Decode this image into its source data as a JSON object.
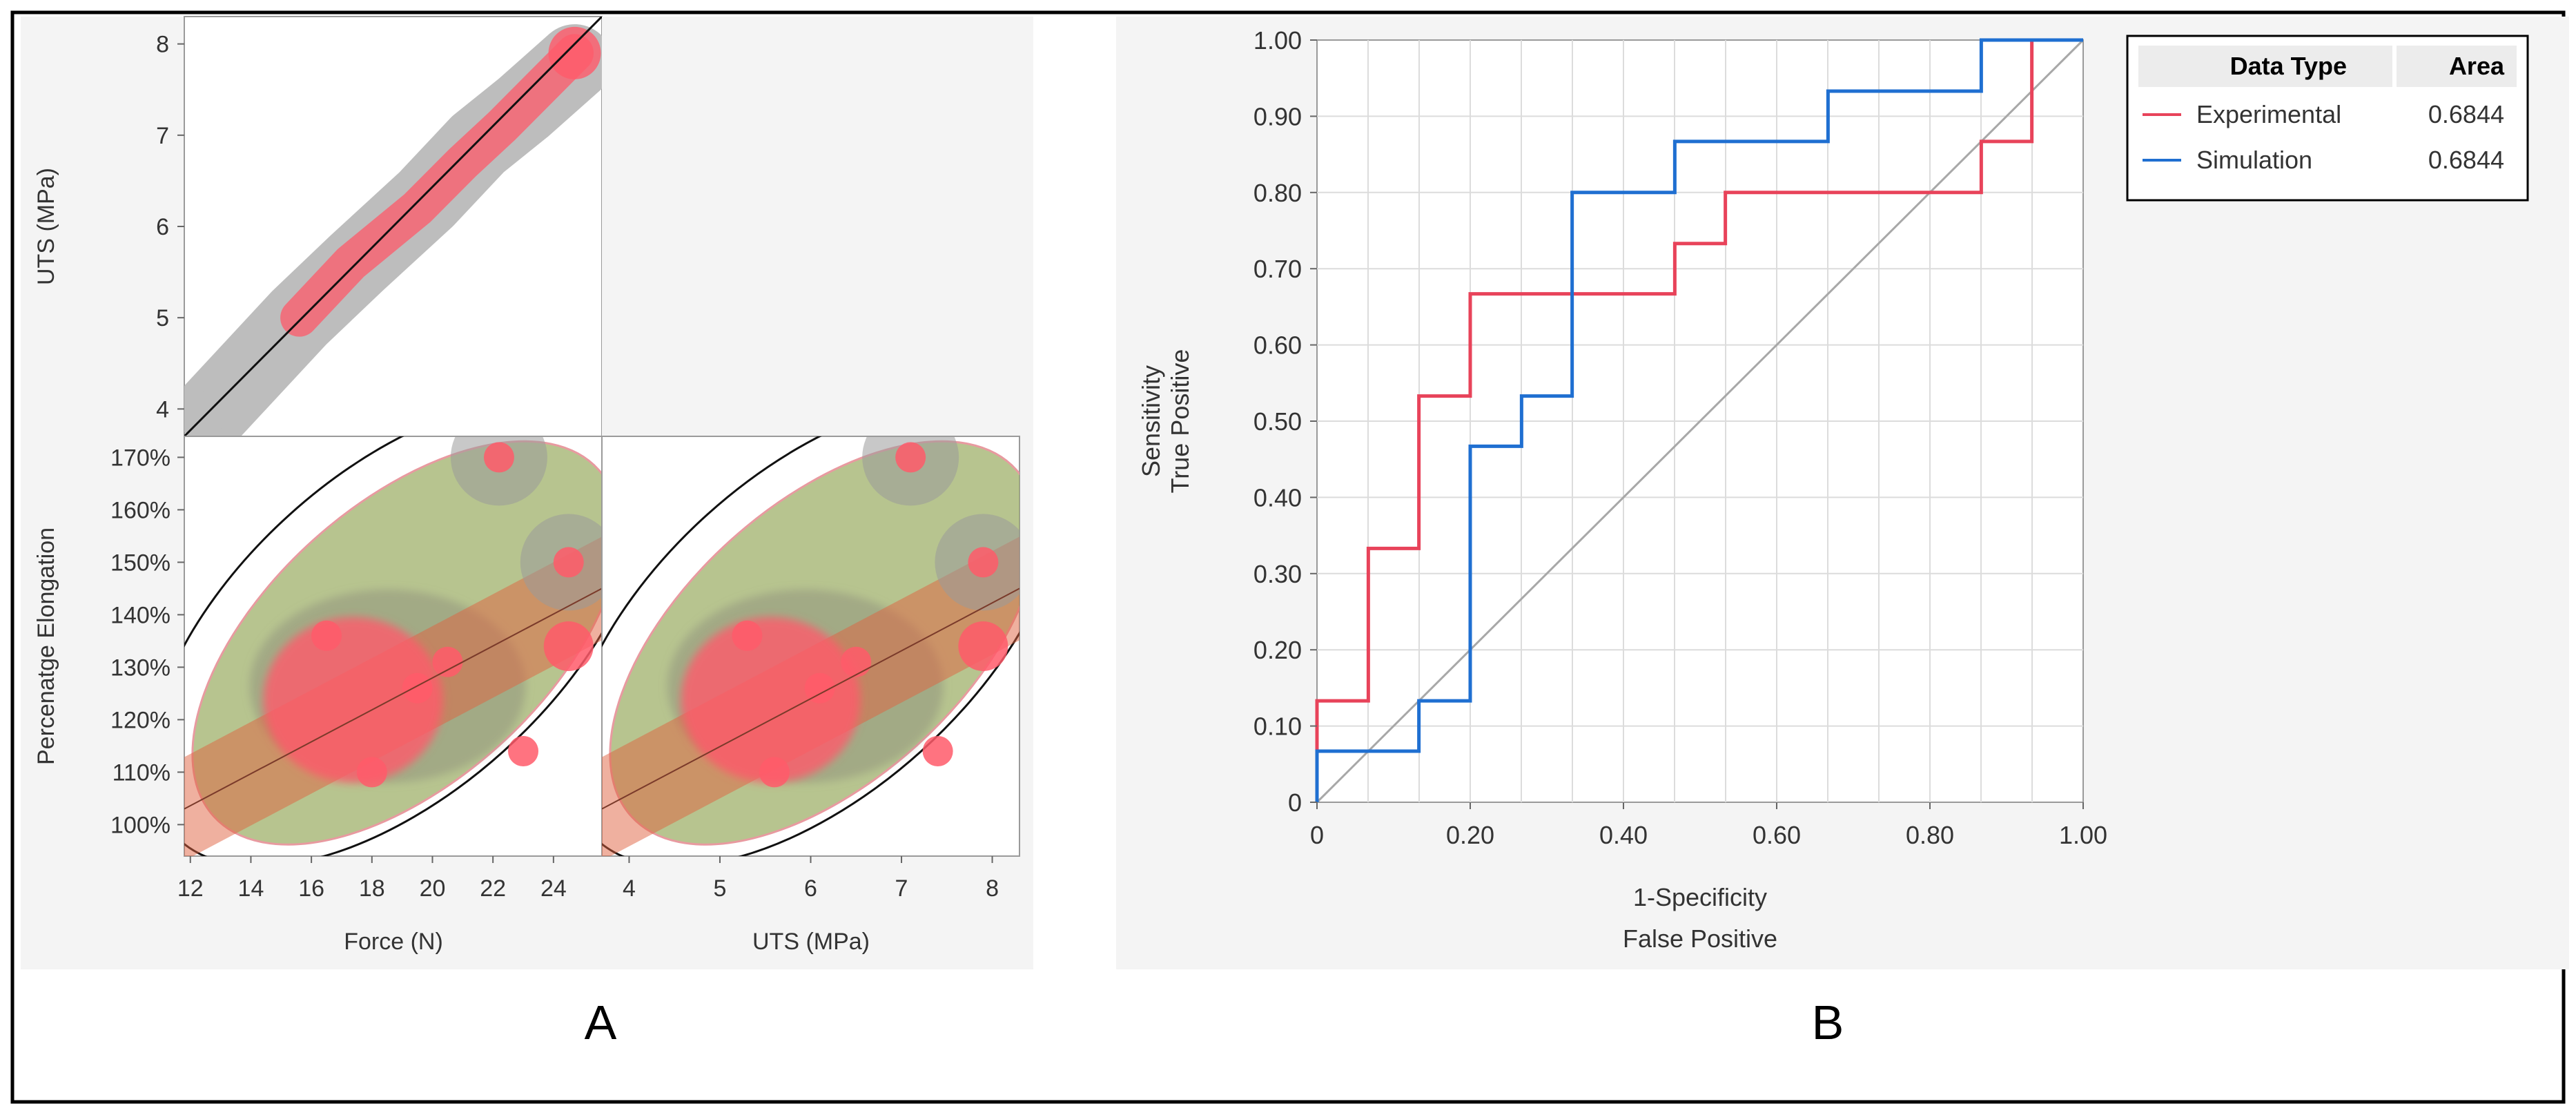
{
  "figure": {
    "panel_a_label": "A",
    "panel_b_label": "B"
  },
  "colors": {
    "experimental": "#e8435a",
    "simulation": "#1f6fd1",
    "density_gray": "#bdbdbd",
    "density_red": "#ff5a6a",
    "ellipse_fill": "#9fb06a",
    "band": "#e0623f",
    "grid": "#dcdcdc",
    "panel_bg": "#f4f4f4"
  },
  "chart_data": [
    {
      "type": "scatter",
      "id": "matrix-uts-vs-force",
      "title": "",
      "xlabel": "",
      "ylabel": "UTS (MPa)",
      "xlim": [
        11.8,
        25.6
      ],
      "ylim": [
        3.7,
        8.3
      ],
      "yticks": [
        4,
        5,
        6,
        7,
        8
      ],
      "fit_line": [
        [
          11.8,
          3.7
        ],
        [
          25.6,
          8.3
        ]
      ],
      "density_gray": [
        [
          12.8,
          4.0
        ],
        [
          15.6,
          5.0
        ],
        [
          17.5,
          5.6
        ],
        [
          19.8,
          6.3
        ],
        [
          21.5,
          6.9
        ],
        [
          23.0,
          7.3
        ],
        [
          24.7,
          7.8
        ]
      ],
      "density_red": [
        [
          15.6,
          5.0
        ],
        [
          17.3,
          5.6
        ],
        [
          19.5,
          6.2
        ],
        [
          21.0,
          6.7
        ],
        [
          22.3,
          7.1
        ],
        [
          24.7,
          7.9
        ]
      ]
    },
    {
      "type": "scatter",
      "id": "matrix-elongation-vs-force",
      "xlabel": "Force (N)",
      "ylabel": "Percenatge Elongation",
      "xlim": [
        11.8,
        25.6
      ],
      "ylim": [
        94,
        174
      ],
      "xticks": [
        12,
        14,
        16,
        18,
        20,
        22,
        24
      ],
      "yticks": [
        "100%",
        "110%",
        "120%",
        "130%",
        "140%",
        "150%",
        "160%",
        "170%"
      ],
      "ytick_values": [
        100,
        110,
        120,
        130,
        140,
        150,
        160,
        170
      ],
      "fit_line": [
        [
          11.8,
          103
        ],
        [
          25.6,
          145
        ]
      ],
      "points": [
        [
          22.2,
          170
        ],
        [
          24.5,
          150
        ],
        [
          16.5,
          136
        ],
        [
          24.5,
          134
        ],
        [
          23.0,
          114
        ],
        [
          19.5,
          126
        ],
        [
          18.0,
          110
        ],
        [
          20.5,
          131
        ]
      ]
    },
    {
      "type": "scatter",
      "id": "matrix-elongation-vs-uts",
      "xlabel": "UTS (MPa)",
      "xlim": [
        3.7,
        8.3
      ],
      "xticks": [
        4,
        5,
        6,
        7,
        8
      ],
      "ylim": [
        94,
        174
      ],
      "fit_line": [
        [
          3.7,
          103
        ],
        [
          8.3,
          145
        ]
      ],
      "points": [
        [
          7.1,
          170
        ],
        [
          7.9,
          150
        ],
        [
          5.3,
          136
        ],
        [
          7.9,
          134
        ],
        [
          7.4,
          114
        ],
        [
          6.1,
          126
        ],
        [
          5.6,
          110
        ],
        [
          6.5,
          131
        ]
      ]
    },
    {
      "type": "line",
      "id": "roc-curve",
      "title": "",
      "xlabel": [
        "1-Specificity",
        "False Positive"
      ],
      "ylabel": [
        "Sensitivity",
        "True Positive"
      ],
      "xlim": [
        0,
        1
      ],
      "ylim": [
        0,
        1
      ],
      "xticks": [
        "0",
        "0.20",
        "0.40",
        "0.60",
        "0.80",
        "1.00"
      ],
      "yticks": [
        "0",
        "0.10",
        "0.20",
        "0.30",
        "0.40",
        "0.50",
        "0.60",
        "0.70",
        "0.80",
        "0.90",
        "1.00"
      ],
      "grid": true,
      "legend": {
        "placement": "right",
        "header_type": "Data Type",
        "header_area": "Area"
      },
      "series": [
        {
          "name": "Experimental",
          "area": "0.6844",
          "color_key": "experimental",
          "points": [
            [
              0,
              0
            ],
            [
              0,
              0.133
            ],
            [
              0.067,
              0.133
            ],
            [
              0.067,
              0.333
            ],
            [
              0.133,
              0.333
            ],
            [
              0.133,
              0.533
            ],
            [
              0.2,
              0.533
            ],
            [
              0.2,
              0.667
            ],
            [
              0.467,
              0.667
            ],
            [
              0.467,
              0.733
            ],
            [
              0.533,
              0.733
            ],
            [
              0.533,
              0.8
            ],
            [
              0.867,
              0.8
            ],
            [
              0.867,
              0.867
            ],
            [
              0.933,
              0.867
            ],
            [
              0.933,
              1.0
            ]
          ]
        },
        {
          "name": "Simulation",
          "area": "0.6844",
          "color_key": "simulation",
          "points": [
            [
              0,
              0
            ],
            [
              0,
              0.067
            ],
            [
              0.133,
              0.067
            ],
            [
              0.133,
              0.133
            ],
            [
              0.2,
              0.133
            ],
            [
              0.2,
              0.467
            ],
            [
              0.267,
              0.467
            ],
            [
              0.267,
              0.533
            ],
            [
              0.333,
              0.533
            ],
            [
              0.333,
              0.8
            ],
            [
              0.467,
              0.8
            ],
            [
              0.467,
              0.867
            ],
            [
              0.667,
              0.867
            ],
            [
              0.667,
              0.933
            ],
            [
              0.867,
              0.933
            ],
            [
              0.867,
              1.0
            ],
            [
              1.0,
              1.0
            ]
          ]
        }
      ]
    }
  ]
}
